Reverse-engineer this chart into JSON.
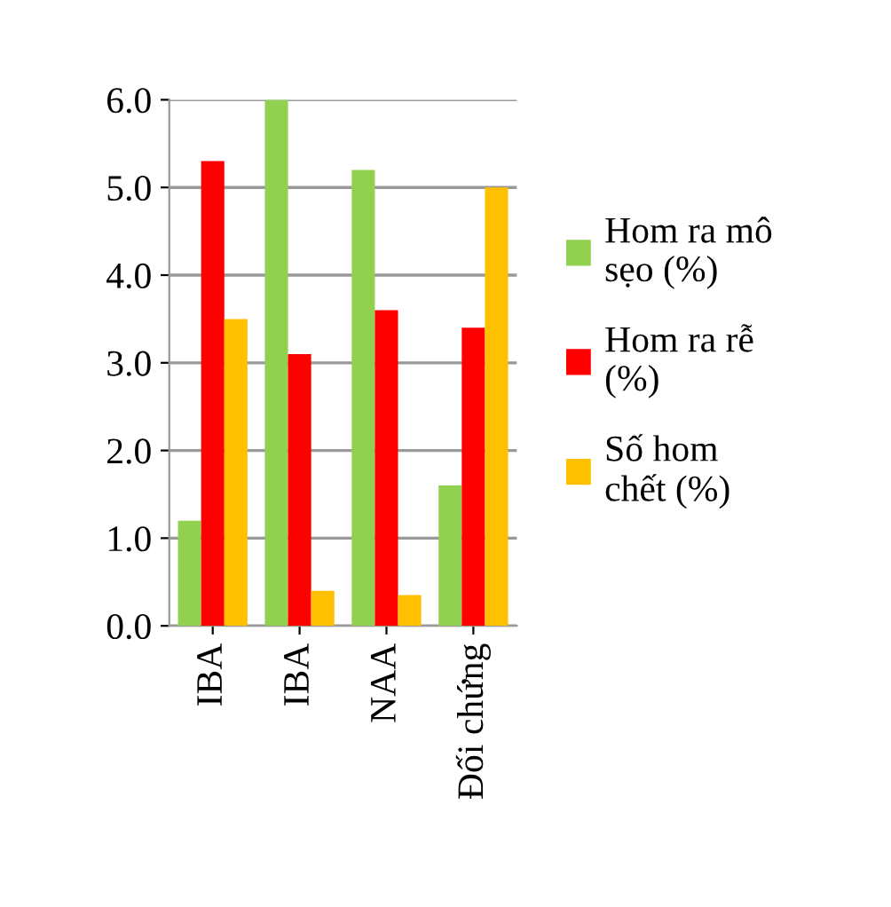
{
  "chart_data": {
    "type": "bar",
    "categories": [
      "IBA",
      "IBA",
      "NAA",
      "Đối chứng"
    ],
    "series": [
      {
        "name": "Hom ra mô\nsẹo (%)",
        "color": "#92d050",
        "values": [
          1.2,
          6.0,
          5.2,
          1.6
        ]
      },
      {
        "name": "Hom ra rễ\n(%)",
        "color": "#ff0000",
        "values": [
          5.3,
          3.1,
          3.6,
          3.4
        ]
      },
      {
        "name": "Số hom\nchết (%)",
        "color": "#ffc000",
        "values": [
          3.5,
          0.4,
          0.35,
          5.0
        ]
      }
    ],
    "ylim": [
      0,
      6
    ],
    "yticks": [
      {
        "value": 0,
        "label": "0.0"
      },
      {
        "value": 1,
        "label": "1.0"
      },
      {
        "value": 2,
        "label": "2.0"
      },
      {
        "value": 3,
        "label": "3.0"
      },
      {
        "value": 4,
        "label": "4.0"
      },
      {
        "value": 5,
        "label": "5.0"
      },
      {
        "value": 6,
        "label": "6.0"
      }
    ],
    "grid": "y",
    "legend": "right"
  }
}
